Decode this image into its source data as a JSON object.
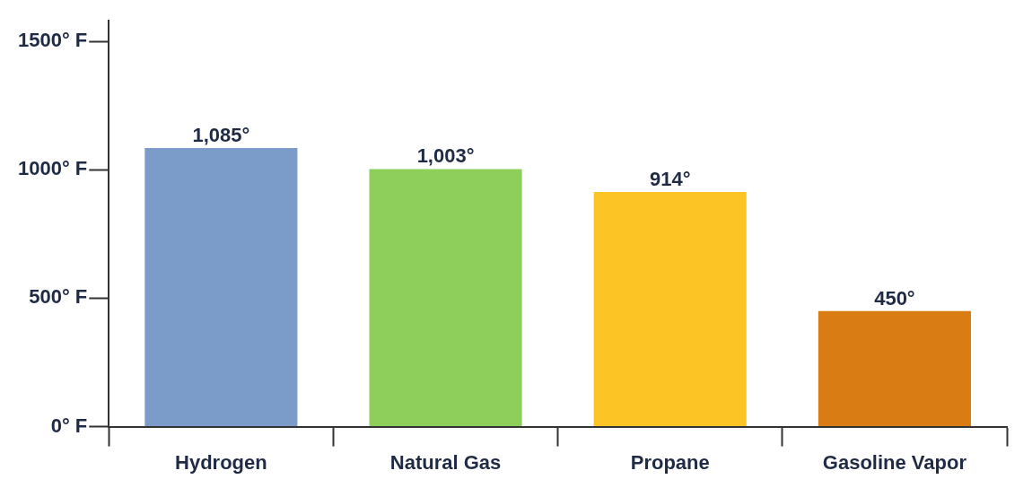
{
  "chart_data": {
    "type": "bar",
    "categories": [
      "Hydrogen",
      "Natural Gas",
      "Propane",
      "Gasoline Vapor"
    ],
    "values": [
      1085,
      1003,
      914,
      450
    ],
    "colors": [
      "#7b9cc8",
      "#8ecf5b",
      "#fcc424",
      "#d97c14"
    ],
    "value_labels": [
      "1,085°",
      "1,003°",
      "914°",
      "450°"
    ],
    "ylim": [
      0,
      1580
    ],
    "yticks": [
      {
        "value": 0,
        "label": "0° F"
      },
      {
        "value": 500,
        "label": "500° F"
      },
      {
        "value": 1000,
        "label": "1000° F"
      },
      {
        "value": 1500,
        "label": "1500° F"
      }
    ],
    "grid": false,
    "legend": false
  }
}
